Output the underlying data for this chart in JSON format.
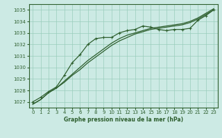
{
  "title": "Graphe pression niveau de la mer (hPa)",
  "background_color": "#cceae4",
  "grid_color": "#99ccbb",
  "line_color": "#2d5e2d",
  "marker_color": "#2d5e2d",
  "xlim": [
    -0.5,
    23.5
  ],
  "ylim": [
    1026.5,
    1035.5
  ],
  "yticks": [
    1027,
    1028,
    1029,
    1030,
    1031,
    1032,
    1033,
    1034,
    1035
  ],
  "xticks": [
    0,
    1,
    2,
    3,
    4,
    5,
    6,
    7,
    8,
    9,
    10,
    11,
    12,
    13,
    14,
    15,
    16,
    17,
    18,
    19,
    20,
    21,
    22,
    23
  ],
  "series1_x": [
    0,
    1,
    2,
    3,
    4,
    5,
    6,
    7,
    8,
    9,
    10,
    11,
    12,
    13,
    14,
    15,
    16,
    17,
    18,
    19,
    20,
    21,
    22,
    23
  ],
  "series1_y": [
    1027.0,
    1027.4,
    1027.9,
    1028.3,
    1029.3,
    1030.4,
    1031.1,
    1032.0,
    1032.5,
    1032.6,
    1032.6,
    1033.0,
    1033.2,
    1033.3,
    1033.6,
    1033.5,
    1033.3,
    1033.2,
    1033.3,
    1033.3,
    1033.4,
    1034.1,
    1034.5,
    1035.0
  ],
  "series2_x": [
    0,
    1,
    2,
    3,
    4,
    5,
    6,
    7,
    8,
    9,
    10,
    11,
    12,
    13,
    14,
    15,
    16,
    17,
    18,
    19,
    20,
    21,
    22,
    23
  ],
  "series2_y": [
    1026.8,
    1027.2,
    1027.8,
    1028.2,
    1028.7,
    1029.3,
    1029.8,
    1030.4,
    1030.9,
    1031.4,
    1031.9,
    1032.3,
    1032.6,
    1032.9,
    1033.1,
    1033.3,
    1033.4,
    1033.5,
    1033.6,
    1033.7,
    1033.9,
    1034.2,
    1034.6,
    1035.0
  ],
  "series3_x": [
    0,
    1,
    2,
    3,
    4,
    5,
    6,
    7,
    8,
    9,
    10,
    11,
    12,
    13,
    14,
    15,
    16,
    17,
    18,
    19,
    20,
    21,
    22,
    23
  ],
  "series3_y": [
    1026.8,
    1027.2,
    1027.8,
    1028.2,
    1028.8,
    1029.4,
    1030.0,
    1030.6,
    1031.1,
    1031.6,
    1032.1,
    1032.5,
    1032.8,
    1033.0,
    1033.2,
    1033.4,
    1033.5,
    1033.6,
    1033.7,
    1033.8,
    1034.0,
    1034.3,
    1034.7,
    1035.1
  ]
}
